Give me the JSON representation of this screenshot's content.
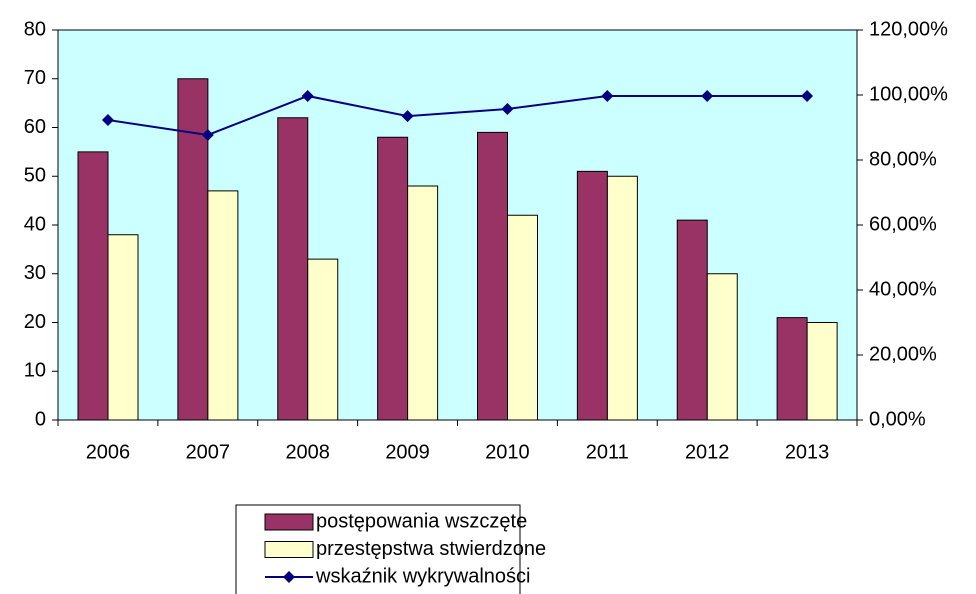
{
  "chart_data": {
    "type": "bar",
    "categories": [
      "2006",
      "2007",
      "2008",
      "2009",
      "2010",
      "2011",
      "2012",
      "2013"
    ],
    "series": [
      {
        "name": "postępowania wszczęte",
        "color": "#993366",
        "values": [
          55,
          70,
          62,
          58,
          59,
          51,
          41,
          21
        ]
      },
      {
        "name": "przestępstwa stwierdzone",
        "color": "#ffffcc",
        "values": [
          38,
          47,
          33,
          48,
          42,
          50,
          30,
          20
        ]
      },
      {
        "name": "wskaźnik wykrywalności",
        "color": "#000080",
        "type": "line",
        "axis": "y2",
        "values": [
          92.3,
          87.7,
          99.7,
          93.5,
          95.7,
          99.7,
          99.7,
          99.7
        ]
      }
    ],
    "ylim": [
      0,
      80
    ],
    "yticks": [
      0,
      10,
      20,
      30,
      40,
      50,
      60,
      70,
      80
    ],
    "y2lim": [
      0,
      120
    ],
    "y2ticks": [
      {
        "value": 0,
        "label": "0,00%"
      },
      {
        "value": 20,
        "label": "20,00%"
      },
      {
        "value": 40,
        "label": "40,00%"
      },
      {
        "value": 60,
        "label": "60,00%"
      },
      {
        "value": 80,
        "label": "80,00%"
      },
      {
        "value": 100,
        "label": "100,00%"
      },
      {
        "value": 120,
        "label": "120,00%"
      }
    ],
    "plot_background": "#ccffff",
    "legend": "bottom"
  }
}
